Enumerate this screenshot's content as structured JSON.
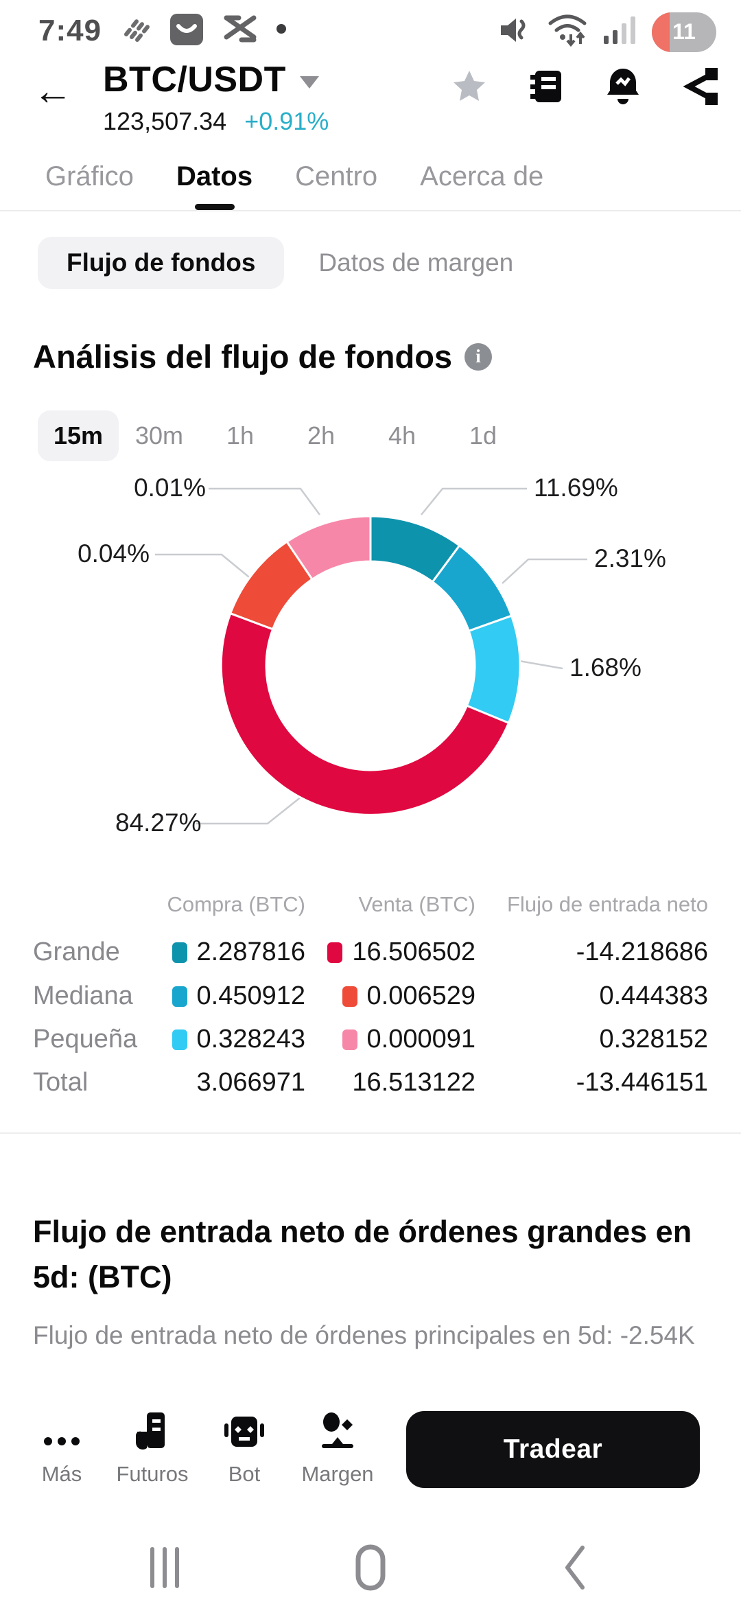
{
  "status_bar": {
    "time": "7:49",
    "battery_level": "11"
  },
  "header": {
    "pair": "BTC/USDT",
    "price": "123,507.34",
    "change": "+0.91%",
    "change_color": "#29aec8",
    "icons": [
      "favorite-star",
      "orderbook",
      "price-alert-bell",
      "share"
    ]
  },
  "tabs": [
    {
      "label": "Gráfico",
      "active": false
    },
    {
      "label": "Datos",
      "active": true
    },
    {
      "label": "Centro",
      "active": false
    },
    {
      "label": "Acerca de",
      "active": false
    }
  ],
  "subtabs": [
    {
      "label": "Flujo de fondos",
      "active": true
    },
    {
      "label": "Datos de margen",
      "active": false
    }
  ],
  "section": {
    "title": "Análisis del flujo de fondos"
  },
  "timeframes": [
    {
      "label": "15m",
      "active": true
    },
    {
      "label": "30m",
      "active": false
    },
    {
      "label": "1h",
      "active": false
    },
    {
      "label": "2h",
      "active": false
    },
    {
      "label": "4h",
      "active": false
    },
    {
      "label": "1d",
      "active": false
    }
  ],
  "chart_data": {
    "type": "pie",
    "subtype": "donut",
    "title": "Análisis del flujo de fondos",
    "unit": "%",
    "legend_position": "none",
    "note": "small slices are visually enlarged by the app; display angles are clockwise from 12 o'clock",
    "slices": [
      {
        "name": "Compra grande",
        "value": 11.69,
        "label": "11.69%",
        "color": "#0e93ad",
        "display_start": 0,
        "display_end": 36.5
      },
      {
        "name": "Compra mediana",
        "value": 2.31,
        "label": "2.31%",
        "color": "#18a6ce",
        "display_start": 36.5,
        "display_end": 70.5
      },
      {
        "name": "Compra pequeña",
        "value": 1.68,
        "label": "1.68%",
        "color": "#31cbf3",
        "display_start": 70.5,
        "display_end": 112.5
      },
      {
        "name": "Venta grande",
        "value": 84.27,
        "label": "84.27%",
        "color": "#e00840",
        "display_start": 112.5,
        "display_end": 290.5
      },
      {
        "name": "Venta mediana",
        "value": 0.04,
        "label": "0.04%",
        "color": "#ee4b38",
        "display_start": 290.5,
        "display_end": 326
      },
      {
        "name": "Venta pequeña",
        "value": 0.01,
        "label": "0.01%",
        "color": "#f787a9",
        "display_start": 326,
        "display_end": 360
      }
    ]
  },
  "table": {
    "headers": {
      "compra": "Compra (BTC)",
      "venta": "Venta (BTC)",
      "neto": "Flujo de entrada neto"
    },
    "rows": [
      {
        "label": "Grande",
        "compra": "2.287816",
        "venta": "16.506502",
        "neto": "-14.218686",
        "compra_color": "#0e93ad",
        "venta_color": "#e00840"
      },
      {
        "label": "Mediana",
        "compra": "0.450912",
        "venta": "0.006529",
        "neto": "0.444383",
        "compra_color": "#18a6ce",
        "venta_color": "#ee4b38"
      },
      {
        "label": "Pequeña",
        "compra": "0.328243",
        "venta": "0.000091",
        "neto": "0.328152",
        "compra_color": "#31cbf3",
        "venta_color": "#f787a9"
      },
      {
        "label": "Total",
        "compra": "3.066971",
        "venta": "16.513122",
        "neto": "-13.446151"
      }
    ]
  },
  "bottom_section": {
    "heading": "Flujo de entrada neto de órdenes grandes en 5d: (BTC)",
    "subtext": "Flujo de entrada neto de órdenes principales en 5d: -2.54K"
  },
  "action_bar": {
    "items": [
      {
        "label": "Más",
        "icon": "more-dots"
      },
      {
        "label": "Futuros",
        "icon": "futures-doc"
      },
      {
        "label": "Bot",
        "icon": "robot"
      },
      {
        "label": "Margen",
        "icon": "margin-scale"
      }
    ],
    "trade_button": "Tradear"
  }
}
